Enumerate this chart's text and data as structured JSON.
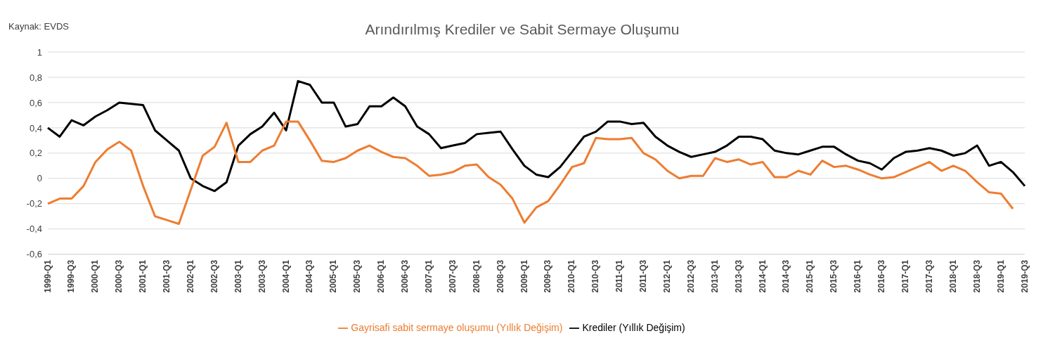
{
  "chart_data": {
    "type": "line",
    "title": "Arındırılmış Krediler ve Sabit Sermaye Oluşumu",
    "annotations": [
      "Kaynak:  EVDS"
    ],
    "categories": [
      "1999-Q1",
      null,
      "1999-Q3",
      null,
      "2000-Q1",
      null,
      "2000-Q3",
      null,
      "2001-Q1",
      null,
      "2001-Q3",
      null,
      "2002-Q1",
      null,
      "2002-Q3",
      null,
      "2003-Q1",
      null,
      "2003-Q3",
      null,
      "2004-Q1",
      null,
      "2004-Q3",
      null,
      "2005-Q1",
      null,
      "2005-Q3",
      null,
      "2006-Q1",
      null,
      "2006-Q3",
      null,
      "2007-Q1",
      null,
      "2007-Q3",
      null,
      "2008-Q1",
      null,
      "2008-Q3",
      null,
      "2009-Q1",
      null,
      "2009-Q3",
      null,
      "2010-Q1",
      null,
      "2010-Q3",
      null,
      "2011-Q1",
      null,
      "2011-Q3",
      null,
      "2012-Q1",
      null,
      "2012-Q3",
      null,
      "2013-Q1",
      null,
      "2013-Q3",
      null,
      "2014-Q1",
      null,
      "2014-Q3",
      null,
      "2015-Q1",
      null,
      "2015-Q3",
      null,
      "2016-Q1",
      null,
      "2016-Q3",
      null,
      "2017-Q1",
      null,
      "2017-Q3",
      null,
      "2018-Q1",
      null,
      "2018-Q3",
      null,
      "2019-Q1",
      null,
      "2019-Q3"
    ],
    "series": [
      {
        "name": "Krediler (Yıllık Değişim)",
        "color": "#000000",
        "values": [
          0.4,
          0.33,
          0.46,
          0.42,
          0.49,
          0.54,
          0.6,
          0.59,
          0.58,
          0.38,
          0.3,
          0.22,
          0.0,
          -0.06,
          -0.1,
          -0.03,
          0.26,
          0.35,
          0.41,
          0.52,
          0.38,
          0.77,
          0.74,
          0.6,
          0.6,
          0.41,
          0.43,
          0.57,
          0.57,
          0.64,
          0.57,
          0.41,
          0.35,
          0.24,
          0.26,
          0.28,
          0.35,
          0.36,
          0.37,
          0.23,
          0.1,
          0.03,
          0.01,
          0.09,
          0.21,
          0.33,
          0.37,
          0.45,
          0.45,
          0.43,
          0.44,
          0.33,
          0.26,
          0.21,
          0.17,
          0.19,
          0.21,
          0.26,
          0.33,
          0.33,
          0.31,
          0.22,
          0.2,
          0.19,
          0.22,
          0.25,
          0.25,
          0.19,
          0.14,
          0.12,
          0.07,
          0.16,
          0.21,
          0.22,
          0.24,
          0.22,
          0.18,
          0.2,
          0.26,
          0.1,
          0.13,
          0.05,
          -0.06
        ]
      },
      {
        "name": "Gayrisafi sabit sermaye oluşumu (Yıllık Değişim)",
        "color": "#ed7d31",
        "values": [
          -0.2,
          -0.16,
          -0.16,
          -0.06,
          0.13,
          0.23,
          0.29,
          0.22,
          -0.06,
          -0.3,
          -0.33,
          -0.36,
          -0.09,
          0.18,
          0.25,
          0.44,
          0.13,
          0.13,
          0.22,
          0.26,
          0.45,
          0.45,
          0.3,
          0.14,
          0.13,
          0.16,
          0.22,
          0.26,
          0.21,
          0.17,
          0.16,
          0.1,
          0.02,
          0.03,
          0.05,
          0.1,
          0.11,
          0.01,
          -0.05,
          -0.16,
          -0.35,
          -0.23,
          -0.18,
          -0.05,
          0.09,
          0.12,
          0.32,
          0.31,
          0.31,
          0.32,
          0.2,
          0.15,
          0.06,
          0.0,
          0.02,
          0.02,
          0.16,
          0.13,
          0.15,
          0.11,
          0.13,
          0.01,
          0.01,
          0.06,
          0.03,
          0.14,
          0.09,
          0.1,
          0.07,
          0.03,
          0.0,
          0.01,
          0.05,
          0.09,
          0.13,
          0.06,
          0.1,
          0.06,
          -0.03,
          -0.11,
          -0.12,
          -0.24,
          null
        ]
      }
    ],
    "ylim": [
      -0.6,
      1
    ],
    "yticks": [
      {
        "value": -0.6,
        "label": "-0,6"
      },
      {
        "value": -0.4,
        "label": "-0,4"
      },
      {
        "value": -0.2,
        "label": "-0,2"
      },
      0,
      {
        "value": 0.2,
        "label": "0,2"
      },
      {
        "value": 0.4,
        "label": "0,4"
      },
      {
        "value": 0.6,
        "label": "0,6"
      },
      {
        "value": 0.8,
        "label": "0,8"
      },
      1
    ],
    "grid": "y",
    "legend": "bottom",
    "line_style": "solid"
  }
}
